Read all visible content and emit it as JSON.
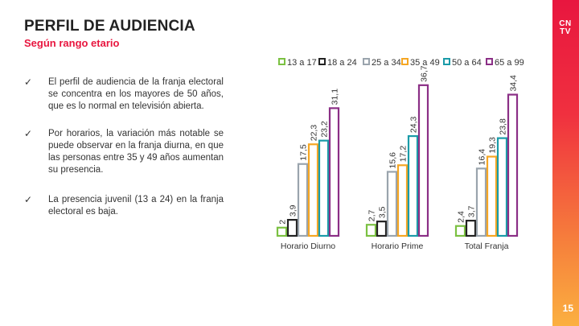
{
  "header": {
    "title": "PERFIL DE AUDIENCIA",
    "subtitle": "Según rango etario"
  },
  "brand": {
    "logo_line1": "CN",
    "logo_line2": "TV"
  },
  "page_number": "15",
  "bullets": [
    {
      "check": "✓",
      "text": "El perfil de audiencia de la franja electoral se concentra en los mayores de 50 años, que es lo normal en televisión abierta."
    },
    {
      "check": "✓",
      "text": "Por horarios, la variación más notable se puede observar en la franja diurna, en que las personas entre 35 y 49 años aumentan su presencia."
    },
    {
      "check": "✓",
      "text": "La presencia juvenil (13 a 24) en la franja electoral es baja."
    }
  ],
  "colors": {
    "accent": "#e8163f",
    "series": [
      "#7bc142",
      "#222222",
      "#9aa4ad",
      "#f5a623",
      "#1a9ba8",
      "#8b2f86"
    ]
  },
  "chart_data": {
    "type": "bar",
    "categories": [
      "Horario Diurno",
      "Horario Prime",
      "Total Franja"
    ],
    "series": [
      {
        "name": "13 a 17",
        "values": [
          2,
          2.7,
          2.4
        ],
        "labels": [
          "2",
          "2,7",
          "2,4"
        ]
      },
      {
        "name": "18 a 24",
        "values": [
          3.9,
          3.5,
          3.7
        ],
        "labels": [
          "3,9",
          "3,5",
          "3,7"
        ]
      },
      {
        "name": "25 a 34",
        "values": [
          17.5,
          15.6,
          16.4
        ],
        "labels": [
          "17,5",
          "15,6",
          "16,4"
        ]
      },
      {
        "name": "35 a 49",
        "values": [
          22.3,
          17.2,
          19.3
        ],
        "labels": [
          "22,3",
          "17,2",
          "19,3"
        ]
      },
      {
        "name": "50 a 64",
        "values": [
          23.2,
          24.3,
          23.8
        ],
        "labels": [
          "23,2",
          "24,3",
          "23,8"
        ]
      },
      {
        "name": "65 a 99",
        "values": [
          31.1,
          36.7,
          34.4
        ],
        "labels": [
          "31,1",
          "36,7",
          "34,4"
        ]
      }
    ],
    "legend_position": "top-right",
    "grid": false
  }
}
